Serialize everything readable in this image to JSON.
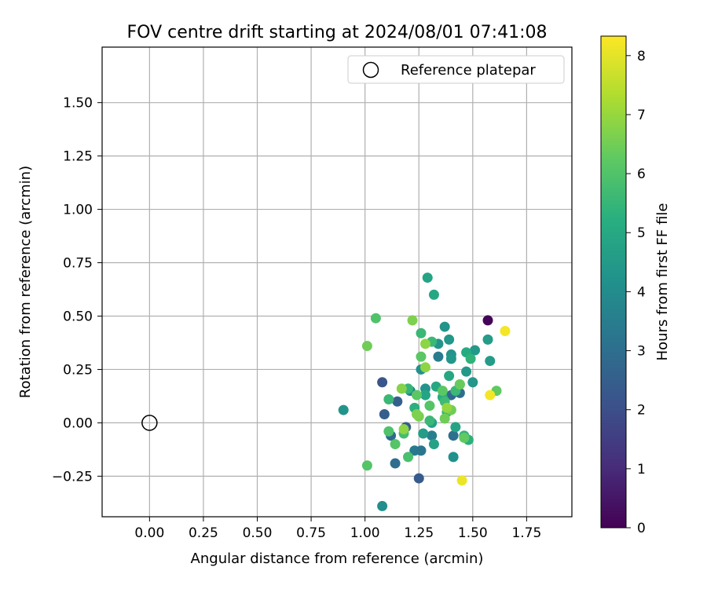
{
  "chart_data": {
    "type": "scatter",
    "title": "FOV centre drift starting at 2024/08/01 07:41:08",
    "xlabel": "Angular distance from reference (arcmin)",
    "ylabel": "Rotation from reference (arcmin)",
    "xlim": [
      -0.22,
      1.96
    ],
    "ylim": [
      -0.44,
      1.76
    ],
    "xticks": [
      "0.00",
      "0.25",
      "0.50",
      "0.75",
      "1.00",
      "1.25",
      "1.50",
      "1.75"
    ],
    "yticks": [
      "−0.25",
      "0.00",
      "0.25",
      "0.50",
      "0.75",
      "1.00",
      "1.25",
      "1.50"
    ],
    "grid": true,
    "legend": {
      "position": "top-right",
      "entries": [
        "Reference platepar"
      ]
    },
    "reference_point": {
      "label": "Reference platepar",
      "x": 0.0,
      "y": 0.0
    },
    "colorbar": {
      "label": "Hours from first FF file",
      "min": 0,
      "max": 8.33,
      "ticks": [
        "0",
        "1",
        "2",
        "3",
        "4",
        "5",
        "6",
        "7",
        "8"
      ],
      "colormap": "viridis"
    },
    "points": [
      {
        "x": 1.57,
        "y": 0.48,
        "c": 0.1
      },
      {
        "x": 1.08,
        "y": 0.19,
        "c": 2.2
      },
      {
        "x": 1.25,
        "y": -0.26,
        "c": 2.4
      },
      {
        "x": 1.09,
        "y": 0.04,
        "c": 2.5
      },
      {
        "x": 1.19,
        "y": -0.02,
        "c": 2.5
      },
      {
        "x": 1.15,
        "y": 0.1,
        "c": 2.6
      },
      {
        "x": 1.14,
        "y": -0.19,
        "c": 3.0
      },
      {
        "x": 1.12,
        "y": -0.06,
        "c": 2.9
      },
      {
        "x": 1.4,
        "y": 0.13,
        "c": 2.9
      },
      {
        "x": 1.41,
        "y": -0.06,
        "c": 3.1
      },
      {
        "x": 1.44,
        "y": 0.14,
        "c": 3.0
      },
      {
        "x": 1.23,
        "y": -0.13,
        "c": 3.4
      },
      {
        "x": 1.26,
        "y": -0.13,
        "c": 3.3
      },
      {
        "x": 1.34,
        "y": 0.31,
        "c": 3.5
      },
      {
        "x": 1.31,
        "y": -0.06,
        "c": 3.6
      },
      {
        "x": 1.21,
        "y": 0.15,
        "c": 3.6
      },
      {
        "x": 0.9,
        "y": 0.06,
        "c": 4.3
      },
      {
        "x": 1.08,
        "y": -0.39,
        "c": 4.1
      },
      {
        "x": 1.41,
        "y": -0.16,
        "c": 4.2
      },
      {
        "x": 1.26,
        "y": 0.25,
        "c": 4.2
      },
      {
        "x": 1.28,
        "y": 0.16,
        "c": 4.3
      },
      {
        "x": 1.34,
        "y": 0.37,
        "c": 4.3
      },
      {
        "x": 1.37,
        "y": 0.45,
        "c": 4.3
      },
      {
        "x": 1.39,
        "y": 0.39,
        "c": 4.4
      },
      {
        "x": 1.4,
        "y": 0.32,
        "c": 4.3
      },
      {
        "x": 1.4,
        "y": 0.3,
        "c": 4.4
      },
      {
        "x": 1.47,
        "y": 0.24,
        "c": 4.5
      },
      {
        "x": 1.5,
        "y": 0.19,
        "c": 4.4
      },
      {
        "x": 1.51,
        "y": 0.34,
        "c": 4.5
      },
      {
        "x": 1.57,
        "y": 0.39,
        "c": 4.6
      },
      {
        "x": 1.58,
        "y": 0.29,
        "c": 4.6
      },
      {
        "x": 1.27,
        "y": -0.05,
        "c": 4.6
      },
      {
        "x": 1.31,
        "y": 0.0,
        "c": 4.7
      },
      {
        "x": 1.32,
        "y": -0.1,
        "c": 4.8
      },
      {
        "x": 1.42,
        "y": -0.02,
        "c": 4.9
      },
      {
        "x": 1.29,
        "y": 0.68,
        "c": 4.9
      },
      {
        "x": 1.32,
        "y": 0.6,
        "c": 5.0
      },
      {
        "x": 1.28,
        "y": 0.13,
        "c": 4.9
      },
      {
        "x": 1.33,
        "y": 0.17,
        "c": 5.0
      },
      {
        "x": 1.36,
        "y": 0.12,
        "c": 5.2
      },
      {
        "x": 1.39,
        "y": 0.22,
        "c": 5.0
      },
      {
        "x": 1.44,
        "y": 0.18,
        "c": 5.1
      },
      {
        "x": 1.47,
        "y": 0.33,
        "c": 5.1
      },
      {
        "x": 1.49,
        "y": 0.3,
        "c": 5.4
      },
      {
        "x": 1.48,
        "y": -0.08,
        "c": 5.3
      },
      {
        "x": 1.46,
        "y": -0.06,
        "c": 5.4
      },
      {
        "x": 1.23,
        "y": 0.07,
        "c": 5.3
      },
      {
        "x": 1.2,
        "y": 0.16,
        "c": 5.5
      },
      {
        "x": 1.11,
        "y": 0.11,
        "c": 5.6
      },
      {
        "x": 1.38,
        "y": 0.05,
        "c": 5.5
      },
      {
        "x": 1.26,
        "y": 0.42,
        "c": 5.6
      },
      {
        "x": 1.3,
        "y": 0.01,
        "c": 5.6
      },
      {
        "x": 1.31,
        "y": 0.38,
        "c": 5.6
      },
      {
        "x": 1.37,
        "y": 0.1,
        "c": 5.7
      },
      {
        "x": 1.42,
        "y": 0.15,
        "c": 5.6
      },
      {
        "x": 1.18,
        "y": -0.05,
        "c": 5.8
      },
      {
        "x": 1.2,
        "y": -0.16,
        "c": 5.9
      },
      {
        "x": 1.11,
        "y": -0.04,
        "c": 6.0
      },
      {
        "x": 1.01,
        "y": -0.2,
        "c": 6.1
      },
      {
        "x": 1.05,
        "y": 0.49,
        "c": 6.0
      },
      {
        "x": 1.14,
        "y": -0.1,
        "c": 6.1
      },
      {
        "x": 1.26,
        "y": 0.31,
        "c": 6.2
      },
      {
        "x": 1.3,
        "y": 0.08,
        "c": 6.1
      },
      {
        "x": 1.24,
        "y": 0.13,
        "c": 6.2
      },
      {
        "x": 1.36,
        "y": 0.15,
        "c": 6.2
      },
      {
        "x": 1.46,
        "y": -0.07,
        "c": 6.3
      },
      {
        "x": 1.61,
        "y": 0.15,
        "c": 6.3
      },
      {
        "x": 1.44,
        "y": 0.18,
        "c": 6.4
      },
      {
        "x": 1.4,
        "y": 0.06,
        "c": 6.5
      },
      {
        "x": 1.37,
        "y": 0.02,
        "c": 6.5
      },
      {
        "x": 1.25,
        "y": 0.03,
        "c": 6.6
      },
      {
        "x": 1.01,
        "y": 0.36,
        "c": 6.5
      },
      {
        "x": 1.22,
        "y": 0.48,
        "c": 6.7
      },
      {
        "x": 1.17,
        "y": 0.16,
        "c": 6.8
      },
      {
        "x": 1.24,
        "y": 0.04,
        "c": 6.7
      },
      {
        "x": 1.28,
        "y": 0.26,
        "c": 6.9
      },
      {
        "x": 1.28,
        "y": 0.37,
        "c": 6.9
      },
      {
        "x": 1.18,
        "y": -0.03,
        "c": 6.9
      },
      {
        "x": 1.38,
        "y": 0.07,
        "c": 7.0
      },
      {
        "x": 1.58,
        "y": 0.13,
        "c": 8.2
      },
      {
        "x": 1.65,
        "y": 0.43,
        "c": 8.2
      },
      {
        "x": 1.45,
        "y": -0.27,
        "c": 8.1
      }
    ]
  }
}
